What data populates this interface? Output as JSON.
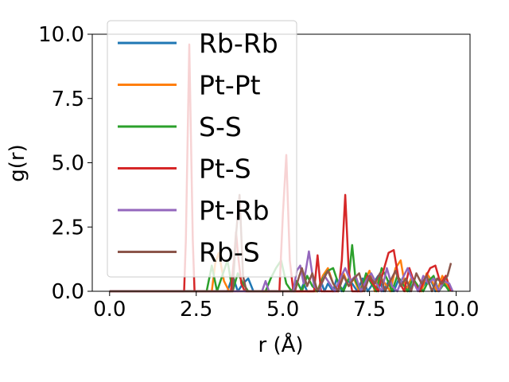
{
  "chart_data": {
    "type": "line",
    "title": "",
    "xlabel": "r (Å)",
    "ylabel": "g(r)",
    "xlim": [
      -0.5,
      10.4
    ],
    "ylim": [
      0,
      10.0
    ],
    "xticks": [
      "0.0",
      "2.5",
      "5.0",
      "7.5",
      "10.0"
    ],
    "xtick_values": [
      0,
      2.5,
      5,
      7.5,
      10
    ],
    "yticks": [
      "0.0",
      "2.5",
      "5.0",
      "7.5",
      "10.0"
    ],
    "ytick_values": [
      0,
      2.5,
      5,
      7.5,
      10
    ],
    "grid": false,
    "legend_position": "top-left",
    "series": [
      {
        "name": "Rb-Rb",
        "color": "#1f77b4",
        "x": [
          0,
          3.4,
          3.55,
          3.7,
          3.85,
          4.0,
          4.15,
          4.3,
          5.5,
          5.6,
          5.7,
          6.0,
          6.1,
          6.2,
          6.3,
          6.45,
          6.55,
          6.7,
          6.85,
          7.0,
          7.15,
          7.3,
          7.45,
          7.6,
          7.75,
          7.9,
          8.05,
          8.2,
          8.35,
          8.5,
          8.65,
          8.8,
          8.95,
          9.1,
          9.25,
          9.4,
          9.55,
          9.7,
          9.9
        ],
        "y": [
          0,
          0,
          0.6,
          0.0,
          0.3,
          0.5,
          0.0,
          0.0,
          0,
          0.3,
          0,
          0,
          0.4,
          0,
          0.3,
          0,
          0.5,
          0,
          0.4,
          0.3,
          0,
          0.5,
          0,
          0.3,
          0.6,
          0,
          0.4,
          0,
          0.5,
          0.3,
          0,
          0.4,
          0,
          0.3,
          0.5,
          0,
          0.3,
          0.2,
          0
        ]
      },
      {
        "name": "Pt-Pt",
        "color": "#ff7f0e",
        "x": [
          0,
          2.95,
          3.05,
          3.15,
          3.3,
          3.45,
          5.0,
          6.0,
          6.15,
          6.3,
          6.45,
          6.6,
          6.75,
          6.9,
          7.05,
          7.2,
          7.35,
          7.5,
          7.65,
          7.8,
          7.95,
          8.1,
          8.25,
          8.4,
          8.55,
          8.7,
          8.85,
          9.0,
          9.15,
          9.3,
          9.45,
          9.6,
          9.75,
          9.9
        ],
        "y": [
          0,
          0,
          1.1,
          1.5,
          0.4,
          0,
          0,
          0,
          0.6,
          0.9,
          0.3,
          0,
          0.7,
          0.2,
          0.5,
          0,
          0.4,
          0.8,
          0,
          0.6,
          0.3,
          0,
          0.9,
          1.2,
          0,
          0.5,
          0.3,
          0,
          0.7,
          0.4,
          0,
          0.6,
          0.2,
          0
        ]
      },
      {
        "name": "S-S",
        "color": "#2ca02c",
        "x": [
          0,
          2.8,
          2.95,
          3.1,
          3.25,
          3.4,
          3.55,
          3.7,
          3.85,
          4.0,
          4.5,
          4.65,
          4.8,
          4.95,
          5.1,
          5.25,
          5.4,
          5.55,
          5.7,
          5.85,
          6.0,
          6.15,
          6.3,
          6.45,
          6.6,
          6.75,
          6.9,
          7.0,
          7.1,
          7.25,
          7.4,
          7.55,
          7.7,
          7.85,
          8.0,
          8.15,
          8.3,
          8.45,
          8.6,
          8.75,
          8.9,
          9.05,
          9.2,
          9.35,
          9.5,
          9.65,
          9.8
        ],
        "y": [
          0,
          0,
          1.0,
          0,
          0.6,
          1.2,
          0,
          0.7,
          0.3,
          0,
          0,
          0.5,
          0.9,
          1.2,
          0.3,
          0,
          0.4,
          0,
          0.6,
          0.2,
          0,
          0.5,
          0.8,
          0.9,
          0.3,
          0,
          0.5,
          1.8,
          0.4,
          0,
          0.7,
          0.3,
          0,
          0.9,
          0.5,
          0,
          0.6,
          0.3,
          0,
          0.5,
          0.2,
          0,
          0.4,
          0.6,
          0,
          0.3,
          0
        ]
      },
      {
        "name": "Pt-S",
        "color": "#d62728",
        "x": [
          0,
          2.15,
          2.2,
          2.3,
          2.4,
          2.45,
          3.5,
          3.6,
          3.65,
          3.7,
          3.8,
          3.9,
          4.9,
          5.0,
          5.1,
          5.2,
          5.3,
          5.9,
          6.0,
          6.1,
          6.6,
          6.7,
          6.8,
          6.9,
          7.0,
          7.3,
          7.45,
          7.6,
          7.75,
          7.9,
          8.05,
          8.2,
          8.35,
          8.5,
          8.65,
          8.8,
          8.95,
          9.1,
          9.25,
          9.4,
          9.55,
          9.7,
          9.85
        ],
        "y": [
          0,
          0,
          2.0,
          9.6,
          2.0,
          0,
          0,
          1.4,
          2.3,
          1.5,
          0.3,
          0,
          0,
          3.0,
          5.3,
          1.2,
          0,
          0,
          1.4,
          0,
          0,
          1.2,
          3.75,
          0.8,
          0,
          0,
          0.6,
          0.3,
          0,
          0.8,
          1.5,
          1.6,
          0.4,
          0,
          0.9,
          0.3,
          0,
          0.5,
          0.9,
          1.0,
          0.3,
          0.6,
          0
        ]
      },
      {
        "name": "Pt-Rb",
        "color": "#9467bd",
        "x": [
          0,
          4.4,
          4.5,
          4.6,
          5.3,
          5.4,
          5.5,
          5.6,
          5.75,
          5.9,
          6.05,
          6.2,
          6.35,
          6.5,
          6.65,
          6.8,
          6.95,
          7.1,
          7.25,
          7.4,
          7.55,
          7.7,
          7.85,
          8.0,
          8.15,
          8.3,
          8.45,
          8.6,
          8.75,
          8.9,
          9.05,
          9.2,
          9.35,
          9.5,
          9.65,
          9.8,
          9.9
        ],
        "y": [
          0,
          0,
          0.4,
          0,
          0,
          0.8,
          1.0,
          0.3,
          1.55,
          0.2,
          0,
          0.6,
          0.3,
          0,
          0.5,
          0.9,
          0.4,
          0.6,
          0,
          0.4,
          0.7,
          0.3,
          0,
          0.9,
          0.2,
          0,
          0.5,
          0.9,
          0.4,
          0,
          0.6,
          0.3,
          0.5,
          0,
          0.4,
          0.3,
          0
        ]
      },
      {
        "name": "Rb-S",
        "color": "#8c564b",
        "x": [
          0,
          3.55,
          3.65,
          3.75,
          3.85,
          3.95,
          5.35,
          5.45,
          5.55,
          5.7,
          5.85,
          6.0,
          6.15,
          6.3,
          6.45,
          6.6,
          6.75,
          6.9,
          7.05,
          7.2,
          7.35,
          7.5,
          7.65,
          7.8,
          7.95,
          8.1,
          8.25,
          8.4,
          8.55,
          8.7,
          8.85,
          9.0,
          9.15,
          9.3,
          9.45,
          9.6,
          9.75,
          9.85
        ],
        "y": [
          0,
          0,
          2.2,
          3.75,
          0.6,
          0,
          0,
          0.5,
          0.9,
          0.2,
          0.7,
          0,
          0.4,
          0.8,
          0.3,
          0,
          0.6,
          0.2,
          0.5,
          0.7,
          0,
          0.6,
          0.3,
          0.7,
          0,
          0.4,
          0.8,
          0.2,
          0.5,
          0,
          0.7,
          0.3,
          0.6,
          0,
          0.5,
          0.3,
          0.6,
          1.1
        ]
      }
    ]
  }
}
